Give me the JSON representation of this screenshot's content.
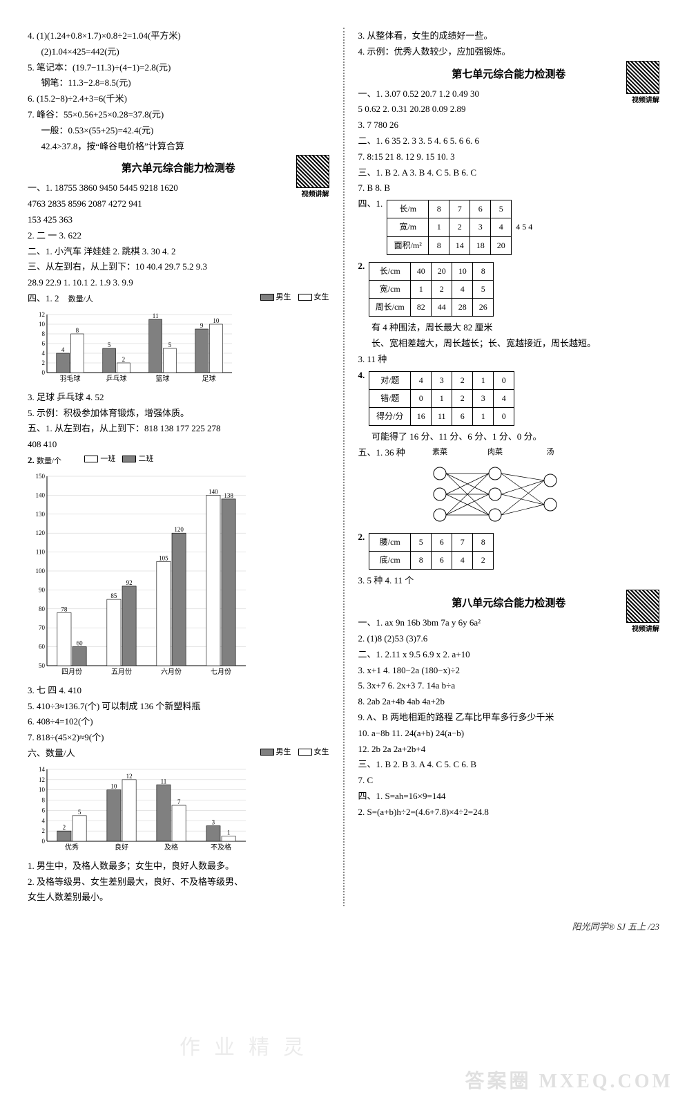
{
  "left": {
    "pre_lines": [
      "4. (1)(1.24+0.8×1.7)×0.8÷2=1.04(平方米)",
      "    (2)1.04×425=442(元)",
      "5. 笔记本：(19.7−11.3)÷(4−1)=2.8(元)",
      "   钢笔：11.3−2.8=8.5(元)",
      "6. (15.2−8)÷2.4+3=6(千米)",
      "7. 峰谷：55×0.56+25×0.28=37.8(元)",
      "   一般：0.53×(55+25)=42.4(元)",
      "   42.4>37.8，按“峰谷电价格”计算合算"
    ],
    "unit6_title": "第六单元综合能力检测卷",
    "qr_label": "视频讲解",
    "u6_1": "一、1. 18755  3860  9450  5445  9218  1620",
    "u6_1b": "    4763  2835  8596  2087  4272  941",
    "u6_1c": "    153  425  363",
    "u6_2": "2. 二  一    3. 622",
    "u6_er": "二、1. 小汽车  洋娃娃   2. 跳棋   3. 30   4. 2",
    "u6_san": "三、从左到右，从上到下：10  40.4  29.7  5.2  9.3",
    "u6_san2": "    28.9  22.9   1. 10.1   2. 1.9   3. 9.9",
    "u6_si": "四、1. 2",
    "chart1": {
      "yMax": 12,
      "yStep": 2,
      "cats": [
        "羽毛球",
        "乒乓球",
        "篮球",
        "足球"
      ],
      "boys": [
        4,
        5,
        11,
        9
      ],
      "girls": [
        8,
        2,
        5,
        10
      ],
      "boyColor": "#808080",
      "girlColor": "#ffffff",
      "border": "#000",
      "legend": [
        "男生",
        "女生"
      ],
      "ylabel": "数量/人"
    },
    "u6_si3": "3. 足球  乒乓球   4. 52",
    "u6_si5": "5. 示例：积极参加体育锻炼，增强体质。",
    "u6_wu1": "五、1. 从左到右，从上到下：818  138  177  225  278",
    "u6_wu1b": "    408  410",
    "chart2": {
      "yMax": 150,
      "yStep": 10,
      "yMin": 50,
      "cats": [
        "四月份",
        "五月份",
        "六月份",
        "七月份"
      ],
      "s1": [
        78,
        85,
        105,
        140
      ],
      "s2": [
        60,
        92,
        120,
        138
      ],
      "c1": "#ffffff",
      "c2": "#808080",
      "border": "#000",
      "legend": [
        "一班",
        "二班"
      ],
      "ylabel": "数量/个"
    },
    "u6_wu3": "3. 七  四   4. 410",
    "u6_wu5": "5. 410÷3≈136.7(个)  可以制成 136 个新塑料瓶",
    "u6_wu6": "6. 408÷4=102(个)",
    "u6_wu7": "7. 818÷(45×2)≈9(个)",
    "u6_liu": "六、数量/人",
    "chart3": {
      "yMax": 14,
      "yStep": 2,
      "cats": [
        "优秀",
        "良好",
        "及格",
        "不及格"
      ],
      "boys": [
        2,
        10,
        11,
        3
      ],
      "girls": [
        5,
        12,
        7,
        1
      ],
      "boyColor": "#808080",
      "girlColor": "#ffffff",
      "legend": [
        "男生",
        "女生"
      ]
    },
    "u6_liu1": "1. 男生中，及格人数最多；女生中，良好人数最多。",
    "u6_liu2": "2. 及格等级男、女生差别最大，良好、不及格等级男、",
    "u6_liu2b": "   女生人数差别最小。"
  },
  "right": {
    "pre": [
      "3. 从整体看，女生的成绩好一些。",
      "4. 示例：优秀人数较少，应加强锻炼。"
    ],
    "unit7_title": "第七单元综合能力检测卷",
    "qr_label": "视频讲解",
    "u7_1": "一、1. 3.07  0.52  20.7  1.2   0.49  30",
    "u7_1b": "    5  0.62   2. 0.31  20.28  0.09  2.89",
    "u7_1c": "3. 7  780  26",
    "u7_er": "二、1. 6  35   2. 3   3. 5   4. 6   5. 6   6. 6",
    "u7_er2": "7. 8:15  21   8. 12   9. 15   10. 3",
    "u7_san": "三、1. B   2. A   3. B   4. C   5. B   6. C",
    "u7_san2": "7. B   8. B",
    "u7_si": "四、1.",
    "table1": {
      "rows": [
        [
          "长/m",
          "8",
          "7",
          "6",
          "5"
        ],
        [
          "宽/m",
          "1",
          "2",
          "3",
          "4"
        ],
        [
          "面积/m²",
          "8",
          "14",
          "18",
          "20"
        ]
      ],
      "extra": "4  5  4"
    },
    "table2_label": "2.",
    "table2": {
      "rows": [
        [
          "长/cm",
          "40",
          "20",
          "10",
          "8"
        ],
        [
          "宽/cm",
          "1",
          "2",
          "4",
          "5"
        ],
        [
          "周长/cm",
          "82",
          "44",
          "28",
          "26"
        ]
      ]
    },
    "t2_note1": "有 4 种围法，周长最大 82 厘米",
    "t2_note2": "长、宽相差越大，周长越长；长、宽越接近，周长越短。",
    "u7_3": "3. 11 种",
    "table3_label": "4.",
    "table3": {
      "rows": [
        [
          "对/题",
          "4",
          "3",
          "2",
          "1",
          "0"
        ],
        [
          "错/题",
          "0",
          "1",
          "2",
          "3",
          "4"
        ],
        [
          "得分/分",
          "16",
          "11",
          "6",
          "1",
          "0"
        ]
      ]
    },
    "t3_note": "可能得了 16 分、11 分、6 分、1 分、0 分。",
    "u7_wu": "五、1. 36 种",
    "net_labels": [
      "素菜",
      "肉菜",
      "汤"
    ],
    "table4_label": "2.",
    "table4": {
      "rows": [
        [
          "腰/cm",
          "5",
          "6",
          "7",
          "8"
        ],
        [
          "底/cm",
          "8",
          "6",
          "4",
          "2"
        ]
      ]
    },
    "u7_wu3": "3. 5 种   4. 11 个",
    "unit8_title": "第八单元综合能力检测卷",
    "u8_1": "一、1. ax  9n  16b  3bm   7a  y  6y  6a²",
    "u8_1b": "2. (1)8   (2)53   (3)7.6",
    "u8_er": "二、1. 2.11  x   9.5  6.9  x    2. a+10",
    "u8_er3": "3. x+1   4. 180−2a  (180−x)÷2",
    "u8_er5": "5. 3x+7   6. 2x+3   7. 14a  b÷a",
    "u8_er8": "8. 2ab  2a+4b  4ab  4a+2b",
    "u8_er9": "9. A、B 两地相距的路程  乙车比甲车多行多少千米",
    "u8_er10": "10. a−8b   11. 24(a+b)  24(a−b)",
    "u8_er12": "12. 2b  2a  2a+2b+4",
    "u8_san": "三、1. B   2. B   3. A   4. C   5. C   6. B",
    "u8_san7": "7. C",
    "u8_si": "四、1. S=ah=16×9=144",
    "u8_si2": "2. S=(a+b)h÷2=(4.6+7.8)×4÷2=24.8"
  },
  "footer": "阳光同学® SJ 五上 /23",
  "watermark_br": "答案圈  MXEQ.COM",
  "watermark_mid": "作业精灵"
}
